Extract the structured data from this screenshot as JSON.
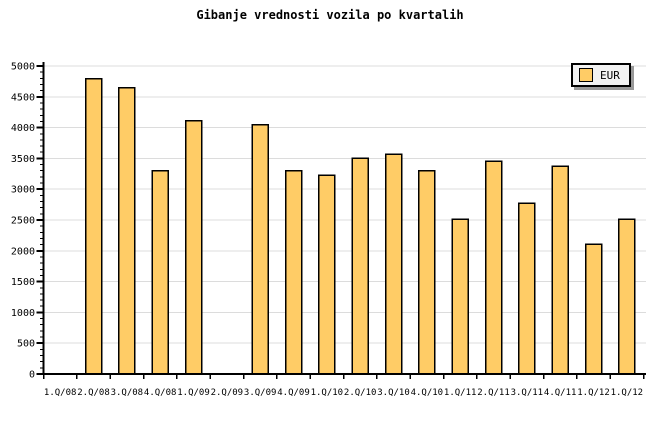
{
  "title": "Gibanje vrednosti vozila po kvartalih",
  "legend": {
    "label": "EUR"
  },
  "chart_data": {
    "type": "bar",
    "title": "Gibanje vrednosti vozila po kvartalih",
    "categories": [
      "1.Q/08",
      "2.Q/08",
      "3.Q/08",
      "4.Q/08",
      "1.Q/09",
      "2.Q/09",
      "3.Q/09",
      "4.Q/09",
      "1.Q/10",
      "2.Q/10",
      "3.Q/10",
      "4.Q/10",
      "1.Q/11",
      "2.Q/11",
      "3.Q/11",
      "4.Q/11",
      "1.Q/12",
      "1.Q/12"
    ],
    "series": [
      {
        "name": "EUR",
        "values": [
          null,
          4790,
          4650,
          3300,
          4110,
          null,
          4050,
          3300,
          3230,
          3500,
          3570,
          3300,
          2510,
          3450,
          2770,
          3370,
          2110,
          2510
        ]
      }
    ],
    "xlabel": "",
    "ylabel": "",
    "ylim": [
      0,
      5000
    ],
    "ytick_step": 500,
    "yminor_step": 100,
    "yticks": [
      0,
      500,
      1000,
      1500,
      2000,
      2500,
      3000,
      3500,
      4000,
      4500,
      5000
    ],
    "grid": true,
    "legend_position": "top-right",
    "colors": {
      "bar_fill": "#FFCC66",
      "bar_border": "#000000",
      "grid": "#DCDCDC",
      "axis": "#000000",
      "legend_bg": "#F2F2F2",
      "legend_shadow": "#999999",
      "background": "#FFFFFF"
    }
  }
}
